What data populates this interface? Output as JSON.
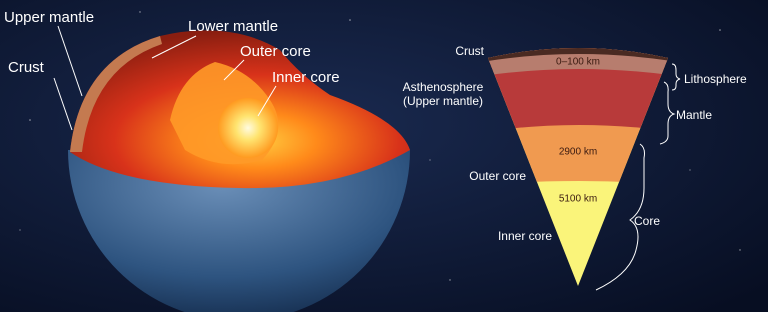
{
  "left_diagram": {
    "labels": [
      "Upper mantle",
      "Crust",
      "Lower mantle",
      "Outer core",
      "Inner core"
    ]
  },
  "right_diagram": {
    "layer_labels": [
      "Crust",
      "Asthenosphere",
      "(Upper mantle)",
      "Outer core",
      "Inner core"
    ],
    "depth_labels": [
      "0–100 km",
      "2900 km",
      "5100 km"
    ],
    "brackets": [
      "Lithosphere",
      "Mantle",
      "Core"
    ]
  }
}
